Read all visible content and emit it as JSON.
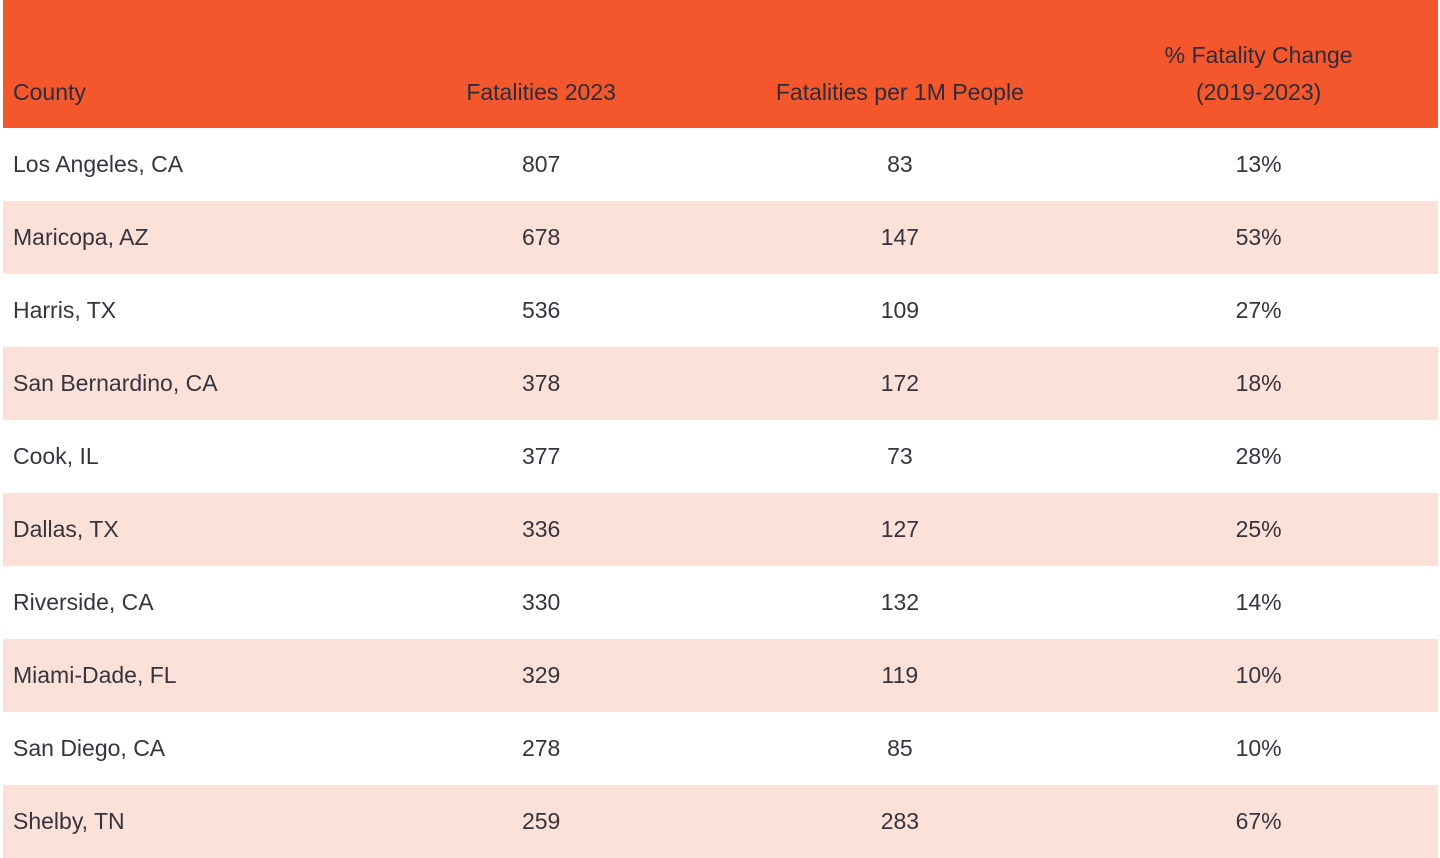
{
  "colors": {
    "header_bg": "#f4572b",
    "row_bg": "#ffffff",
    "row_alt_bg": "#fce1d8",
    "text": "#35343f",
    "header_text": "#2e2c3a"
  },
  "chart_data": {
    "type": "table",
    "columns": [
      "County",
      "Fatalities 2023",
      "Fatalities per 1M People",
      "% Fatality Change (2019-2023)"
    ],
    "rows": [
      [
        "Los Angeles, CA",
        807,
        83,
        "13%"
      ],
      [
        "Maricopa, AZ",
        678,
        147,
        "53%"
      ],
      [
        "Harris, TX",
        536,
        109,
        "27%"
      ],
      [
        "San Bernardino, CA",
        378,
        172,
        "18%"
      ],
      [
        "Cook, IL",
        377,
        73,
        "28%"
      ],
      [
        "Dallas, TX",
        336,
        127,
        "25%"
      ],
      [
        "Riverside, CA",
        330,
        132,
        "14%"
      ],
      [
        "Miami-Dade, FL",
        329,
        119,
        "10%"
      ],
      [
        "San Diego, CA",
        278,
        85,
        "10%"
      ],
      [
        "Shelby, TN",
        259,
        283,
        "67%"
      ]
    ],
    "layout": {
      "header_align": "center",
      "first_column_align": "left",
      "numeric_align": "center",
      "striped": true
    }
  }
}
